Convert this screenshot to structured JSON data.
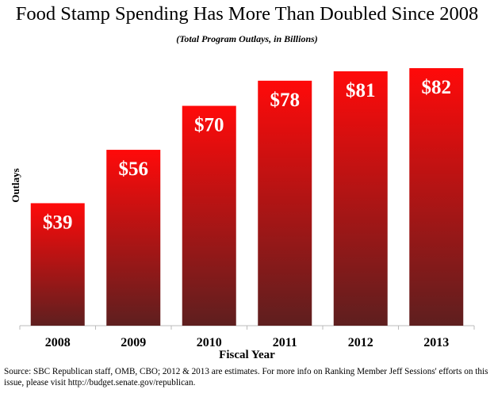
{
  "chart_data": {
    "type": "bar",
    "title": "Food Stamp Spending Has More Than Doubled Since 2008",
    "subtitle": "(Total Program Outlays, in Billions)",
    "xlabel": "Fiscal Year",
    "ylabel": "Outlays",
    "categories": [
      "2008",
      "2009",
      "2010",
      "2011",
      "2012",
      "2013"
    ],
    "values": [
      39,
      56,
      70,
      78,
      81,
      82
    ],
    "data_labels": [
      "$39",
      "$56",
      "$70",
      "$78",
      "$81",
      "$82"
    ],
    "ylim": [
      0,
      82
    ],
    "grid": false,
    "colors": {
      "bar_top": "#ff0a0a",
      "bar_bottom": "#5e1f1f"
    }
  },
  "source": "Source: SBC Republican staff, OMB, CBO; 2012 & 2013 are estimates. For more info on Ranking Member Jeff Sessions' efforts on this issue, please visit http://budget.senate.gov/republican."
}
